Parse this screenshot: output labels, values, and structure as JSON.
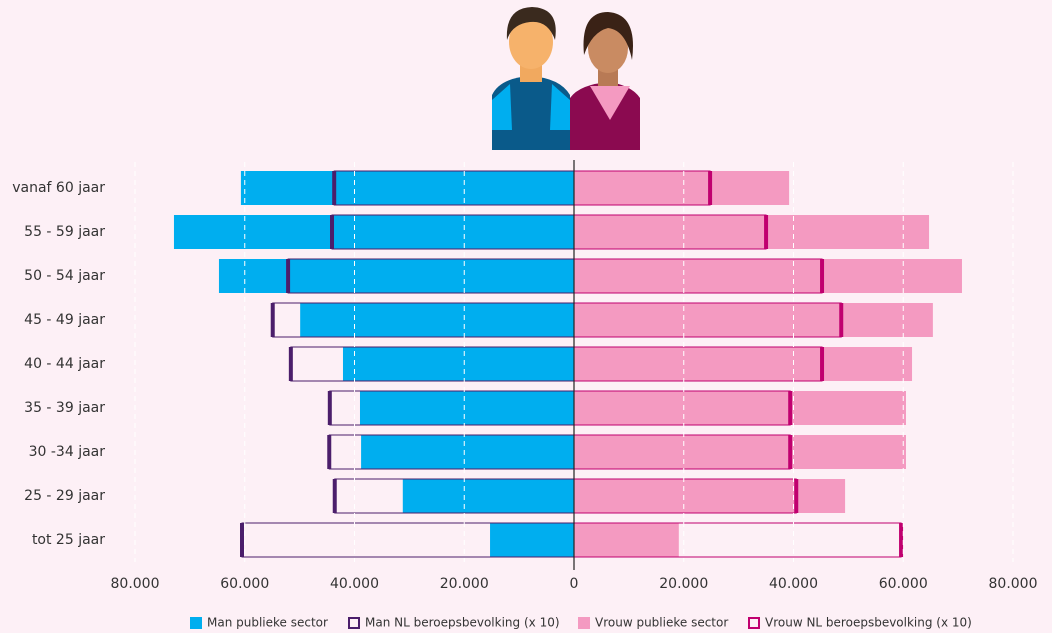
{
  "chart_data": {
    "type": "pyramid",
    "categories": [
      "vanaf 60 jaar",
      "55 - 59 jaar",
      "50 - 54 jaar",
      "45 - 49 jaar",
      "40 - 44 jaar",
      "35 - 39 jaar",
      "30 -34 jaar",
      "25 - 29 jaar",
      "tot 25 jaar"
    ],
    "series": [
      {
        "name": "Man publieke sector",
        "color": "#00aeef",
        "side": "left",
        "style": "fill",
        "values": [
          60700,
          72900,
          64700,
          49900,
          42100,
          39000,
          38800,
          31200,
          15300
        ]
      },
      {
        "name": "Man NL beroepsbevolking (x 10)",
        "color": "#4b1e6b",
        "side": "left",
        "style": "outline",
        "values": [
          43700,
          44100,
          52100,
          54900,
          51600,
          44500,
          44600,
          43600,
          60500
        ]
      },
      {
        "name": "Vrouw publieke sector",
        "color": "#f49ac1",
        "side": "right",
        "style": "fill",
        "values": [
          39200,
          64700,
          70700,
          65400,
          61600,
          60500,
          60500,
          49400,
          19100
        ]
      },
      {
        "name": "Vrouw NL beroepsbevolking (x 10)",
        "color": "#c0006f",
        "side": "right",
        "style": "outline",
        "values": [
          24800,
          35000,
          45200,
          48700,
          45200,
          39400,
          39400,
          40500,
          59600
        ]
      }
    ],
    "xlim": [
      -80000,
      80000
    ],
    "xticks": [
      {
        "value": -80000,
        "label": "80.000"
      },
      {
        "value": -60000,
        "label": "60.000"
      },
      {
        "value": -40000,
        "label": "40.000"
      },
      {
        "value": -20000,
        "label": "20.000"
      },
      0,
      {
        "value": 20000,
        "label": "20.000"
      },
      {
        "value": 40000,
        "label": "40.000"
      },
      {
        "value": 60000,
        "label": "60.000"
      },
      {
        "value": 80000,
        "label": "80.000"
      }
    ],
    "grid": true
  }
}
